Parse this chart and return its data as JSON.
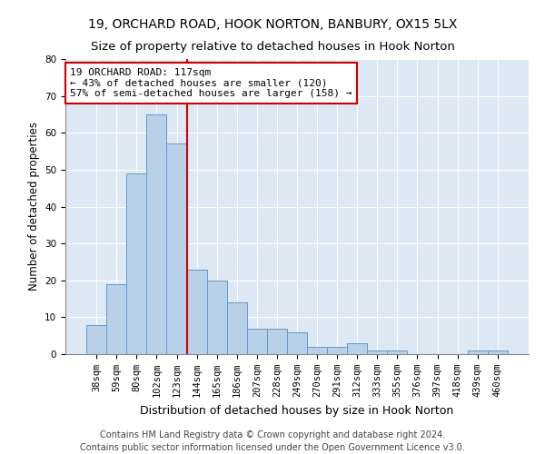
{
  "title1": "19, ORCHARD ROAD, HOOK NORTON, BANBURY, OX15 5LX",
  "title2": "Size of property relative to detached houses in Hook Norton",
  "xlabel": "Distribution of detached houses by size in Hook Norton",
  "ylabel": "Number of detached properties",
  "categories": [
    "38sqm",
    "59sqm",
    "80sqm",
    "102sqm",
    "123sqm",
    "144sqm",
    "165sqm",
    "186sqm",
    "207sqm",
    "228sqm",
    "249sqm",
    "270sqm",
    "291sqm",
    "312sqm",
    "333sqm",
    "355sqm",
    "376sqm",
    "397sqm",
    "418sqm",
    "439sqm",
    "460sqm"
  ],
  "values": [
    8,
    19,
    49,
    65,
    57,
    23,
    20,
    14,
    7,
    7,
    6,
    2,
    2,
    3,
    1,
    1,
    0,
    0,
    0,
    1,
    1
  ],
  "bar_color": "#b8d0e8",
  "bar_edge_color": "#6699cc",
  "vline_x": 4.5,
  "vline_color": "#cc0000",
  "annotation_text": "19 ORCHARD ROAD: 117sqm\n← 43% of detached houses are smaller (120)\n57% of semi-detached houses are larger (158) →",
  "annotation_box_color": "#ffffff",
  "annotation_box_edge": "#cc0000",
  "ylim": [
    0,
    80
  ],
  "yticks": [
    0,
    10,
    20,
    30,
    40,
    50,
    60,
    70,
    80
  ],
  "footer": "Contains HM Land Registry data © Crown copyright and database right 2024.\nContains public sector information licensed under the Open Government Licence v3.0.",
  "fig_bg_color": "#ffffff",
  "plot_bg_color": "#dde8f5",
  "title1_fontsize": 10,
  "title2_fontsize": 9.5,
  "xlabel_fontsize": 9,
  "ylabel_fontsize": 8.5,
  "tick_fontsize": 7.5,
  "annotation_fontsize": 8,
  "footer_fontsize": 7
}
